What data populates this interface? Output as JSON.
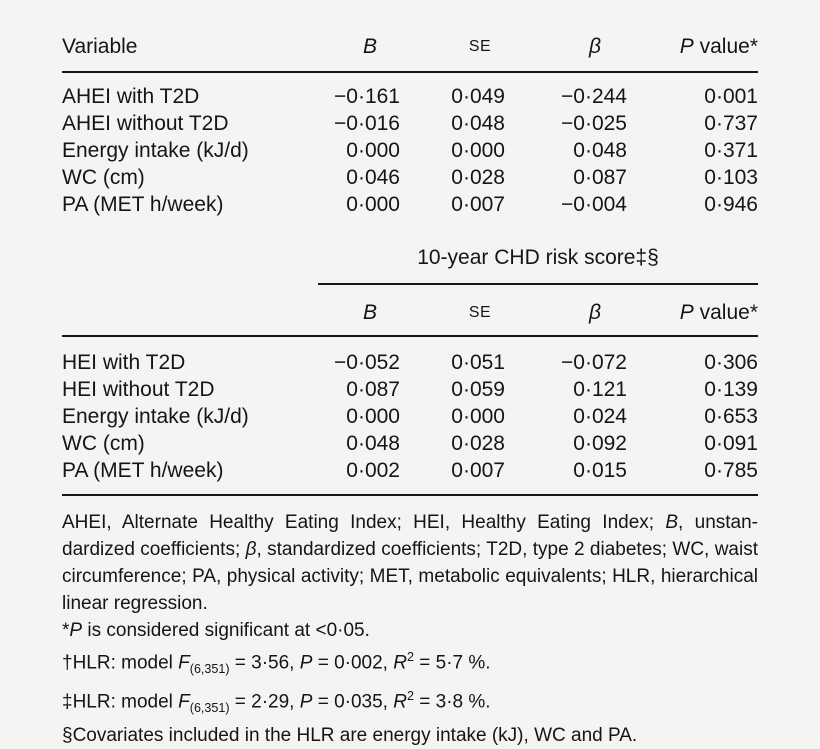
{
  "page": {
    "background_color": "#f4f4f2",
    "text_color": "#151515",
    "rule_color": "#161616"
  },
  "table1": {
    "header": {
      "variable": "Variable",
      "b": [
        {
          "t": "B",
          "s": "i"
        }
      ],
      "se": [
        {
          "t": "SE",
          "s": "sc"
        }
      ],
      "beta": [
        {
          "t": "β",
          "s": "i"
        }
      ],
      "p": [
        {
          "t": "P",
          "s": "i"
        },
        {
          "t": " value*"
        }
      ]
    },
    "rows": [
      {
        "label": "AHEI with T2D",
        "b": "−0·161",
        "se": "0·049",
        "beta": "−0·244",
        "p": "0·001"
      },
      {
        "label": "AHEI without T2D",
        "b": "−0·016",
        "se": "0·048",
        "beta": "−0·025",
        "p": "0·737"
      },
      {
        "label": "Energy intake (kJ/d)",
        "b": "0·000",
        "se": "0·000",
        "beta": "0·048",
        "p": "0·371"
      },
      {
        "label": "WC (cm)",
        "b": "0·046",
        "se": "0·028",
        "beta": "0·087",
        "p": "0·103"
      },
      {
        "label": "PA (MET h/week)",
        "b": "0·000",
        "se": "0·007",
        "beta": "−0·004",
        "p": "0·946"
      }
    ]
  },
  "section2": {
    "spanner": "10-year CHD risk score‡§"
  },
  "table2": {
    "header": {
      "variable": "",
      "b": [
        {
          "t": "B",
          "s": "i"
        }
      ],
      "se": [
        {
          "t": "SE",
          "s": "sc"
        }
      ],
      "beta": [
        {
          "t": "β",
          "s": "i"
        }
      ],
      "p": [
        {
          "t": "P",
          "s": "i"
        },
        {
          "t": " value*"
        }
      ]
    },
    "rows": [
      {
        "label": "HEI with T2D",
        "b": "−0·052",
        "se": "0·051",
        "beta": "−0·072",
        "p": "0·306"
      },
      {
        "label": "HEI without T2D",
        "b": "0·087",
        "se": "0·059",
        "beta": "0·121",
        "p": "0·139"
      },
      {
        "label": "Energy intake (kJ/d)",
        "b": "0·000",
        "se": "0·000",
        "beta": "0·024",
        "p": "0·653"
      },
      {
        "label": "WC (cm)",
        "b": "0·048",
        "se": "0·028",
        "beta": "0·092",
        "p": "0·091"
      },
      {
        "label": "PA (MET h/week)",
        "b": "0·002",
        "se": "0·007",
        "beta": "0·015",
        "p": "0·785"
      }
    ]
  },
  "footnotes": {
    "abbreviations": [
      {
        "t": "AHEI, Alternate Healthy Eating Index; HEI, Healthy Eating Index; "
      },
      {
        "t": "B",
        "s": "i"
      },
      {
        "t": ", unstan­dardized coefficients; "
      },
      {
        "t": "β",
        "s": "i"
      },
      {
        "t": ", standardized coefficients; T2D, type 2 diabetes; WC, waist circumference; PA, physical activity; MET, metabolic equivalents; HLR, hierarchical linear regression."
      }
    ],
    "significance": [
      {
        "t": "*"
      },
      {
        "t": "P",
        "s": "i"
      },
      {
        "t": " is considered significant at <0·05."
      }
    ],
    "model_cvd": [
      {
        "t": "†HLR: model "
      },
      {
        "t": "F",
        "s": "i"
      },
      {
        "t": "(6,351)",
        "s": "sub"
      },
      {
        "t": " = 3·56, "
      },
      {
        "t": "P",
        "s": "i"
      },
      {
        "t": " = 0·002, "
      },
      {
        "t": "R",
        "s": "i"
      },
      {
        "t": "2",
        "s": "sup"
      },
      {
        "t": " = 5·7 %."
      }
    ],
    "model_chd": [
      {
        "t": "‡HLR: model "
      },
      {
        "t": "F",
        "s": "i"
      },
      {
        "t": "(6,351)",
        "s": "sub"
      },
      {
        "t": " = 2·29, "
      },
      {
        "t": "P",
        "s": "i"
      },
      {
        "t": " = 0·035, "
      },
      {
        "t": "R",
        "s": "i"
      },
      {
        "t": "2",
        "s": "sup"
      },
      {
        "t": " = 3·8 %."
      }
    ],
    "covariates": [
      {
        "t": "§Covariates included in the HLR are energy intake (kJ), WC and PA."
      }
    ]
  }
}
